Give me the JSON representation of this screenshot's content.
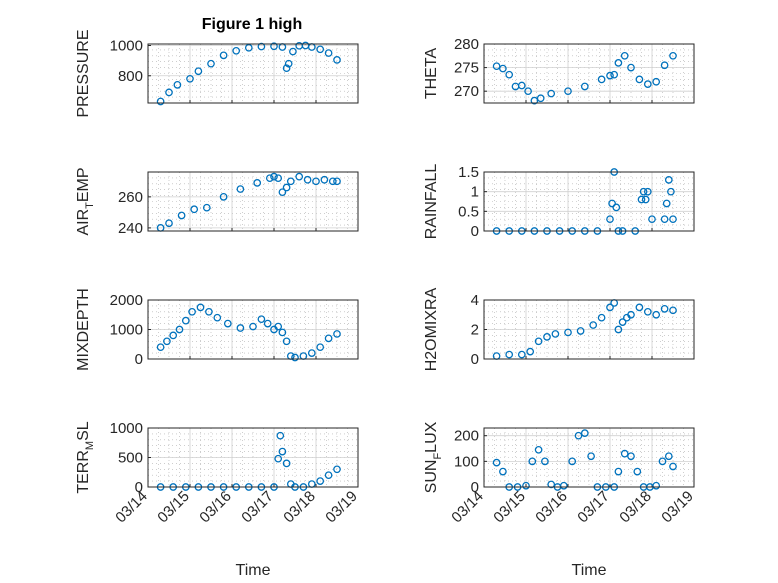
{
  "figure": {
    "title": "Figure 1 high"
  },
  "colors": {
    "marker": "#0072BD",
    "axis": "#262626",
    "grid": "#b0b0b0",
    "background": "#ffffff"
  },
  "chart_data": [
    {
      "type": "scatter",
      "ylabel": "PRESSURE",
      "ylabel_main": "PRESSURE",
      "ylabel_sub": "",
      "ylabel_tail": "",
      "ylim": [
        620,
        1010
      ],
      "yticks": [
        800,
        1000
      ],
      "xlim": [
        "03/14",
        "03/19"
      ],
      "xticklabels": [
        "03/14",
        "03/15",
        "03/16",
        "03/17",
        "03/18",
        "03/19"
      ],
      "x": [
        0.3,
        0.5,
        0.7,
        1.0,
        1.2,
        1.5,
        1.8,
        2.1,
        2.4,
        2.7,
        3.0,
        3.2,
        3.3,
        3.35,
        3.45,
        3.6,
        3.75,
        3.9,
        4.1,
        4.3,
        4.5
      ],
      "y": [
        630,
        690,
        740,
        780,
        830,
        880,
        935,
        965,
        985,
        993,
        995,
        990,
        850,
        880,
        960,
        998,
        1000,
        990,
        975,
        950,
        905
      ],
      "grid": true
    },
    {
      "type": "scatter",
      "ylabel": "THETA",
      "ylabel_main": "THETA",
      "ylabel_sub": "",
      "ylabel_tail": "",
      "ylim": [
        267.5,
        280
      ],
      "yticks": [
        270,
        275,
        280
      ],
      "xticklabels": [
        "03/14",
        "03/15",
        "03/16",
        "03/17",
        "03/18",
        "03/19"
      ],
      "x": [
        0.3,
        0.45,
        0.6,
        0.75,
        0.9,
        1.05,
        1.2,
        1.35,
        1.6,
        2.0,
        2.4,
        2.8,
        3.0,
        3.1,
        3.2,
        3.35,
        3.5,
        3.7,
        3.9,
        4.1,
        4.3,
        4.5
      ],
      "y": [
        275.3,
        274.8,
        273.5,
        271.0,
        271.2,
        270.0,
        268.0,
        268.5,
        269.5,
        270.0,
        271.0,
        272.5,
        273.3,
        273.5,
        276.0,
        277.5,
        275.0,
        272.5,
        271.5,
        272.0,
        275.5,
        277.5
      ],
      "grid": true
    },
    {
      "type": "scatter",
      "ylabel": "AIR_TEMP",
      "ylabel_main": "AIR",
      "ylabel_sub": "T",
      "ylabel_tail": "EMP",
      "ylim": [
        238,
        276
      ],
      "yticks": [
        240,
        260
      ],
      "xticklabels": [
        "03/14",
        "03/15",
        "03/16",
        "03/17",
        "03/18",
        "03/19"
      ],
      "x": [
        0.3,
        0.5,
        0.8,
        1.1,
        1.4,
        1.8,
        2.2,
        2.6,
        2.9,
        3.0,
        3.1,
        3.2,
        3.3,
        3.4,
        3.6,
        3.8,
        4.0,
        4.2,
        4.4,
        4.5
      ],
      "y": [
        240,
        243,
        248,
        252,
        253,
        260,
        265,
        269,
        272,
        273,
        272,
        263,
        266,
        270,
        273,
        271,
        270,
        271,
        270,
        270
      ],
      "grid": true
    },
    {
      "type": "scatter",
      "ylabel": "RAINFALL",
      "ylabel_main": "RAINFALL",
      "ylabel_sub": "",
      "ylabel_tail": "",
      "ylim": [
        0,
        1.5
      ],
      "yticks": [
        0,
        0.5,
        1,
        1.5
      ],
      "xticklabels": [
        "03/14",
        "03/15",
        "03/16",
        "03/17",
        "03/18",
        "03/19"
      ],
      "x": [
        0.3,
        0.6,
        0.9,
        1.2,
        1.5,
        1.8,
        2.1,
        2.4,
        2.7,
        3.0,
        3.05,
        3.1,
        3.15,
        3.2,
        3.3,
        3.6,
        3.75,
        3.8,
        3.85,
        3.9,
        4.0,
        4.3,
        4.35,
        4.4,
        4.45,
        4.5
      ],
      "y": [
        0,
        0,
        0,
        0,
        0,
        0,
        0,
        0,
        0,
        0.3,
        0.7,
        1.5,
        0.6,
        0,
        0,
        0,
        0.8,
        1.0,
        0.8,
        1.0,
        0.3,
        0.3,
        0.7,
        1.3,
        1.0,
        0.3
      ],
      "grid": true
    },
    {
      "type": "scatter",
      "ylabel": "MIXDEPTH",
      "ylabel_main": "MIXDEPTH",
      "ylabel_sub": "",
      "ylabel_tail": "",
      "ylim": [
        0,
        2000
      ],
      "yticks": [
        0,
        1000,
        2000
      ],
      "xticklabels": [
        "03/14",
        "03/15",
        "03/16",
        "03/17",
        "03/18",
        "03/19"
      ],
      "x": [
        0.3,
        0.45,
        0.6,
        0.75,
        0.9,
        1.05,
        1.25,
        1.45,
        1.65,
        1.9,
        2.2,
        2.5,
        2.7,
        2.85,
        3.0,
        3.1,
        3.2,
        3.3,
        3.4,
        3.5,
        3.7,
        3.9,
        4.1,
        4.3,
        4.5
      ],
      "y": [
        400,
        600,
        800,
        1000,
        1300,
        1600,
        1750,
        1600,
        1400,
        1200,
        1050,
        1100,
        1350,
        1200,
        1000,
        1100,
        900,
        600,
        100,
        50,
        100,
        200,
        400,
        700,
        850
      ],
      "grid": true
    },
    {
      "type": "scatter",
      "ylabel": "H2OMIXRA",
      "ylabel_main": "H2OMIXRA",
      "ylabel_sub": "",
      "ylabel_tail": "",
      "ylim": [
        0,
        4
      ],
      "yticks": [
        0,
        2,
        4
      ],
      "xticklabels": [
        "03/14",
        "03/15",
        "03/16",
        "03/17",
        "03/18",
        "03/19"
      ],
      "x": [
        0.3,
        0.6,
        0.9,
        1.1,
        1.3,
        1.5,
        1.7,
        2.0,
        2.3,
        2.6,
        2.8,
        3.0,
        3.1,
        3.2,
        3.3,
        3.4,
        3.5,
        3.7,
        3.9,
        4.1,
        4.3,
        4.5
      ],
      "y": [
        0.2,
        0.3,
        0.3,
        0.5,
        1.2,
        1.5,
        1.7,
        1.8,
        1.9,
        2.3,
        2.8,
        3.5,
        3.8,
        2.0,
        2.5,
        2.8,
        3.0,
        3.5,
        3.2,
        3.0,
        3.4,
        3.3
      ],
      "grid": true
    },
    {
      "type": "scatter",
      "ylabel": "TERR_MSL",
      "ylabel_main": "TERR",
      "ylabel_sub": "M",
      "ylabel_tail": "SL",
      "ylim": [
        0,
        1000
      ],
      "yticks": [
        0,
        500,
        1000
      ],
      "xticklabels": [
        "03/14",
        "03/15",
        "03/16",
        "03/17",
        "03/18",
        "03/19"
      ],
      "x": [
        0.3,
        0.6,
        0.9,
        1.2,
        1.5,
        1.8,
        2.1,
        2.4,
        2.7,
        3.0,
        3.1,
        3.15,
        3.2,
        3.3,
        3.4,
        3.5,
        3.7,
        3.9,
        4.1,
        4.3,
        4.5
      ],
      "y": [
        0,
        0,
        0,
        0,
        0,
        0,
        0,
        0,
        0,
        0,
        480,
        870,
        600,
        400,
        50,
        0,
        0,
        50,
        100,
        200,
        300
      ],
      "grid": true
    },
    {
      "type": "scatter",
      "ylabel": "SUN_FLUX",
      "ylabel_main": "SUN",
      "ylabel_sub": "F",
      "ylabel_tail": "LUX",
      "ylim": [
        0,
        230
      ],
      "yticks": [
        0,
        100,
        200
      ],
      "xticklabels": [
        "03/14",
        "03/15",
        "03/16",
        "03/17",
        "03/18",
        "03/19"
      ],
      "x": [
        0.3,
        0.45,
        0.6,
        0.8,
        1.0,
        1.15,
        1.3,
        1.45,
        1.6,
        1.75,
        1.9,
        2.1,
        2.25,
        2.4,
        2.55,
        2.7,
        2.9,
        3.1,
        3.2,
        3.35,
        3.5,
        3.65,
        3.8,
        3.95,
        4.1,
        4.25,
        4.4,
        4.5
      ],
      "y": [
        95,
        60,
        0,
        0,
        5,
        100,
        145,
        100,
        10,
        0,
        5,
        100,
        200,
        210,
        120,
        0,
        0,
        0,
        60,
        130,
        120,
        60,
        0,
        0,
        5,
        100,
        120,
        80
      ],
      "grid": true
    }
  ],
  "xlabel": "Time"
}
